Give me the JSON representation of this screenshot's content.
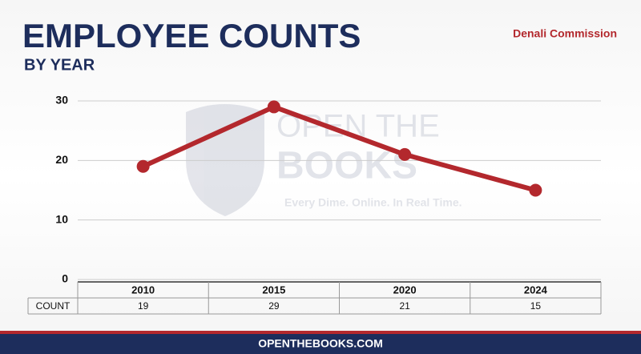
{
  "chart_data": {
    "type": "line",
    "title": "EMPLOYEE COUNTS",
    "subtitle": "BY YEAR",
    "annotation": "Denali Commission",
    "categories": [
      "2010",
      "2015",
      "2020",
      "2024"
    ],
    "series": [
      {
        "name": "COUNT",
        "color": "#b3282d",
        "values": [
          19,
          29,
          21,
          15
        ]
      }
    ],
    "ylim": [
      0,
      30
    ],
    "yticks": [
      0,
      10,
      20,
      30
    ],
    "grid": true
  },
  "watermark": {
    "line1": "OPEN THE",
    "line2": "BOOKS",
    "tagline": "Every Dime. Online. In Real Time."
  },
  "footer": "OPENTHEBOOKS.COM"
}
